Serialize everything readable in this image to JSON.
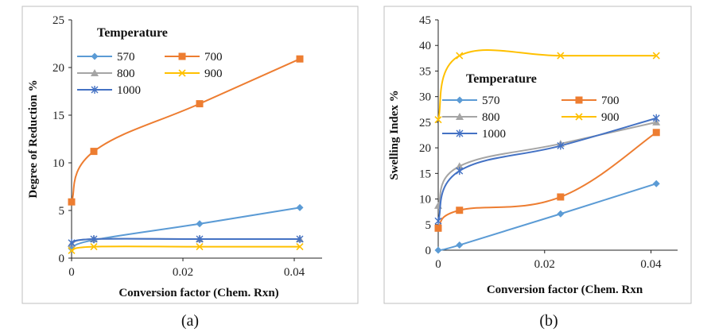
{
  "chart_data": [
    {
      "type": "line",
      "panel_label": "(a)",
      "ylabel": "Degree of Reduction %",
      "xlabel": "Conversion factor (Chem. Rxn)",
      "legend_title": "Temperature",
      "xlim": [
        0,
        0.04
      ],
      "ylim": [
        0,
        25
      ],
      "xticks": [
        "0",
        "0.02",
        "0.04"
      ],
      "yticks": [
        "0",
        "5",
        "10",
        "15",
        "20",
        "25"
      ],
      "grid": false,
      "legend_position": "top-left",
      "x": [
        0,
        0.004,
        0.023,
        0.041
      ],
      "series": [
        {
          "name": "570",
          "color": "#5B9BD5",
          "marker": "diamond",
          "values": [
            1.0,
            1.9,
            3.6,
            5.3
          ]
        },
        {
          "name": "700",
          "color": "#ED7D31",
          "marker": "square",
          "values": [
            5.9,
            11.2,
            16.2,
            20.9
          ]
        },
        {
          "name": "800",
          "color": "#A5A5A5",
          "marker": "triangle",
          "values": [
            1.5,
            2.0,
            2.0,
            2.0
          ]
        },
        {
          "name": "900",
          "color": "#FFC000",
          "marker": "x",
          "values": [
            0.8,
            1.2,
            1.2,
            1.2
          ]
        },
        {
          "name": "1000",
          "color": "#4472C4",
          "marker": "star",
          "values": [
            1.6,
            2.0,
            2.0,
            2.0
          ]
        }
      ]
    },
    {
      "type": "line",
      "panel_label": "(b)",
      "ylabel": "Swelling Index %",
      "xlabel": "Conversion factor (Chem. Rxn",
      "legend_title": "Temperature",
      "xlim": [
        0,
        0.04
      ],
      "ylim": [
        0,
        45
      ],
      "xticks": [
        "0",
        "0.02",
        "0.04"
      ],
      "yticks": [
        "0",
        "5",
        "10",
        "15",
        "20",
        "25",
        "30",
        "35",
        "40",
        "45"
      ],
      "grid": false,
      "legend_position": "middle-left",
      "x": [
        0,
        0.004,
        0.023,
        0.041
      ],
      "series": [
        {
          "name": "570",
          "color": "#5B9BD5",
          "marker": "diamond",
          "values": [
            0,
            1.0,
            7.1,
            13.0
          ]
        },
        {
          "name": "700",
          "color": "#ED7D31",
          "marker": "square",
          "values": [
            4.3,
            7.8,
            10.4,
            23.0
          ]
        },
        {
          "name": "800",
          "color": "#A5A5A5",
          "marker": "triangle",
          "values": [
            8.7,
            16.4,
            20.8,
            25.0
          ]
        },
        {
          "name": "900",
          "color": "#FFC000",
          "marker": "x",
          "values": [
            25.5,
            38.0,
            38.0,
            38.0
          ]
        },
        {
          "name": "1000",
          "color": "#4472C4",
          "marker": "star",
          "values": [
            5.7,
            15.5,
            20.4,
            25.8
          ]
        }
      ]
    }
  ]
}
